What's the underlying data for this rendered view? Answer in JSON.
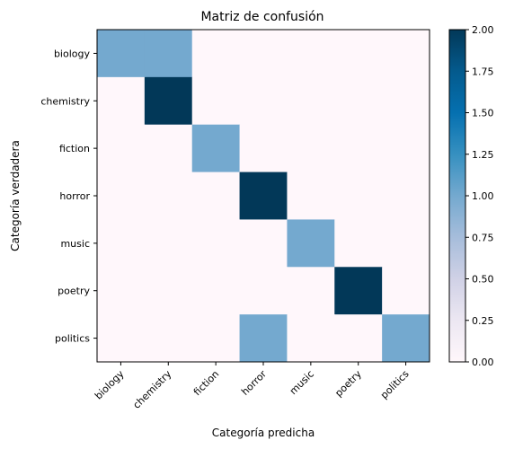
{
  "chart_data": {
    "type": "heatmap",
    "title": "Matriz de confusión",
    "xlabel": "Categoría predicha",
    "ylabel": "Categoría verdadera",
    "x_categories": [
      "biology",
      "chemistry",
      "fiction",
      "horror",
      "music",
      "poetry",
      "politics"
    ],
    "y_categories": [
      "biology",
      "chemistry",
      "fiction",
      "horror",
      "music",
      "poetry",
      "politics"
    ],
    "values": [
      [
        1,
        1,
        0,
        0,
        0,
        0,
        0
      ],
      [
        0,
        2,
        0,
        0,
        0,
        0,
        0
      ],
      [
        0,
        0,
        1,
        0,
        0,
        0,
        0
      ],
      [
        0,
        0,
        0,
        2,
        0,
        0,
        0
      ],
      [
        0,
        0,
        0,
        0,
        1,
        0,
        0
      ],
      [
        0,
        0,
        0,
        0,
        0,
        2,
        0
      ],
      [
        0,
        0,
        0,
        1,
        0,
        0,
        1
      ]
    ],
    "colorbar": {
      "min": 0,
      "max": 2,
      "ticks": [
        "0.00",
        "0.25",
        "0.50",
        "0.75",
        "1.00",
        "1.25",
        "1.50",
        "1.75",
        "2.00"
      ]
    },
    "colormap": "PuBu",
    "colors": {
      "low": "#fff7fb",
      "mid": "#74a9cf",
      "high": "#023858"
    }
  }
}
